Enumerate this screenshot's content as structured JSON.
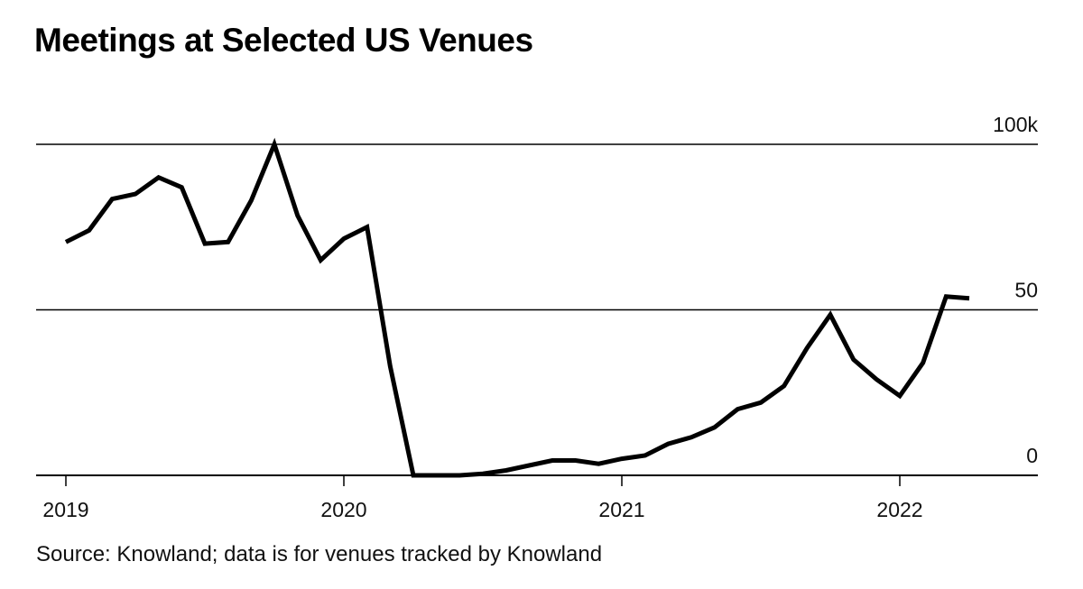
{
  "title": "Meetings at Selected US Venues",
  "source": "Source: Knowland; data is for venues tracked by Knowland",
  "chart_data": {
    "type": "line",
    "title": "Meetings at Selected US Venues",
    "xlabel": "",
    "ylabel": "",
    "y_unit": "thousands",
    "ylim": [
      0,
      100
    ],
    "y_ticks": [
      {
        "value": 100,
        "label": "100k"
      },
      {
        "value": 50,
        "label": "50"
      },
      {
        "value": 0,
        "label": "0"
      }
    ],
    "x_ticks": [
      {
        "value": "2019-01",
        "label": "2019"
      },
      {
        "value": "2020-01",
        "label": "2020"
      },
      {
        "value": "2021-01",
        "label": "2021"
      },
      {
        "value": "2022-01",
        "label": "2022"
      }
    ],
    "grid": "horizontal at 50 and 100",
    "line_color": "#000000",
    "series": [
      {
        "x": [
          "2019-01",
          "2019-02",
          "2019-03",
          "2019-04",
          "2019-05",
          "2019-06",
          "2019-07",
          "2019-08",
          "2019-09",
          "2019-10",
          "2019-11",
          "2019-12",
          "2020-01",
          "2020-02",
          "2020-03",
          "2020-04",
          "2020-05",
          "2020-06",
          "2020-07",
          "2020-08",
          "2020-09",
          "2020-10",
          "2020-11",
          "2020-12",
          "2021-01",
          "2021-02",
          "2021-03",
          "2021-04",
          "2021-05",
          "2021-06",
          "2021-07",
          "2021-08",
          "2021-09",
          "2021-10",
          "2021-11",
          "2021-12",
          "2022-01",
          "2022-02",
          "2022-03",
          "2022-04"
        ],
        "values": [
          70.5,
          74,
          83.5,
          85,
          90,
          87,
          70,
          70.5,
          83,
          100,
          78.5,
          65,
          71.5,
          75,
          33,
          0,
          0,
          0,
          0.5,
          1.5,
          3,
          4.5,
          4.5,
          3.5,
          5,
          6,
          9.5,
          11.5,
          14.5,
          20,
          22,
          27,
          38.5,
          48.5,
          35,
          29,
          24,
          34,
          54,
          53.5
        ]
      }
    ]
  }
}
